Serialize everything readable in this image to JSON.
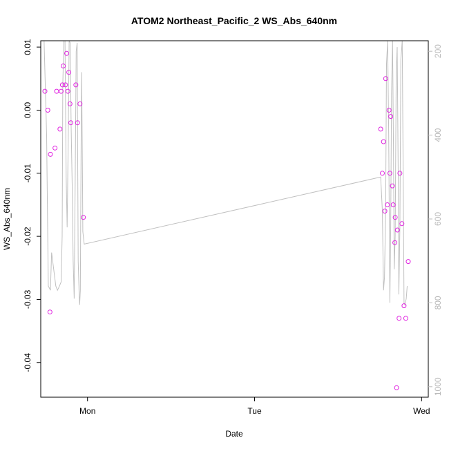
{
  "chart_data": {
    "type": "scatter",
    "title": "ATOM2 Northeast_Pacific_2 WS_Abs_640nm",
    "xlabel": "Date",
    "ylabel": "WS_Abs_640nm",
    "x_unit": "days",
    "xlim": [
      -0.28,
      2.04
    ],
    "ylim": [
      -0.0455,
      0.011
    ],
    "x_ticks": [
      {
        "value": 0,
        "label": "Mon"
      },
      {
        "value": 1,
        "label": "Tue"
      },
      {
        "value": 2,
        "label": "Wed"
      }
    ],
    "y_ticks": [
      {
        "value": 0.01,
        "label": "0.01"
      },
      {
        "value": 0.0,
        "label": "0.00"
      },
      {
        "value": -0.01,
        "label": "-0.01"
      },
      {
        "value": -0.02,
        "label": "-0.02"
      },
      {
        "value": -0.03,
        "label": "-0.03"
      },
      {
        "value": -0.04,
        "label": "-0.04"
      }
    ],
    "y2_ticks": [
      {
        "value": 200,
        "label": "200"
      },
      {
        "value": 400,
        "label": "400"
      },
      {
        "value": 600,
        "label": "600"
      },
      {
        "value": 800,
        "label": "800"
      },
      {
        "value": 1000,
        "label": "1000"
      }
    ],
    "y2lim": [
      1025,
      175
    ],
    "colors": {
      "points": "#e020e0",
      "line": "#c0c0c0",
      "axis": "#000000",
      "right_axis": "#b8b8b8"
    },
    "series": [
      {
        "type": "scatter",
        "points": [
          [
            -0.255,
            0.003
          ],
          [
            -0.238,
            0.0
          ],
          [
            -0.225,
            -0.032
          ],
          [
            -0.222,
            -0.007
          ],
          [
            -0.195,
            -0.006
          ],
          [
            -0.185,
            0.003
          ],
          [
            -0.165,
            -0.003
          ],
          [
            -0.158,
            0.003
          ],
          [
            -0.15,
            0.004
          ],
          [
            -0.145,
            0.007
          ],
          [
            -0.132,
            0.004
          ],
          [
            -0.125,
            0.009
          ],
          [
            -0.118,
            0.003
          ],
          [
            -0.112,
            0.006
          ],
          [
            -0.105,
            0.001
          ],
          [
            -0.1,
            -0.002
          ],
          [
            -0.07,
            0.004
          ],
          [
            -0.06,
            -0.002
          ],
          [
            -0.045,
            0.001
          ],
          [
            -0.025,
            -0.017
          ],
          [
            1.755,
            -0.003
          ],
          [
            1.765,
            -0.01
          ],
          [
            1.772,
            -0.005
          ],
          [
            1.78,
            -0.016
          ],
          [
            1.785,
            0.005
          ],
          [
            1.795,
            -0.015
          ],
          [
            1.805,
            0.0
          ],
          [
            1.81,
            -0.01
          ],
          [
            1.815,
            -0.001
          ],
          [
            1.825,
            -0.012
          ],
          [
            1.83,
            -0.015
          ],
          [
            1.84,
            -0.021
          ],
          [
            1.842,
            -0.017
          ],
          [
            1.85,
            -0.044
          ],
          [
            1.855,
            -0.019
          ],
          [
            1.865,
            -0.033
          ],
          [
            1.87,
            -0.01
          ],
          [
            1.882,
            -0.018
          ],
          [
            1.895,
            -0.031
          ],
          [
            1.905,
            -0.033
          ],
          [
            1.92,
            -0.024
          ]
        ]
      },
      {
        "type": "line",
        "axis": "right",
        "points": [
          [
            -0.26,
            120
          ],
          [
            -0.245,
            400
          ],
          [
            -0.235,
            760
          ],
          [
            -0.228,
            765
          ],
          [
            -0.222,
            770
          ],
          [
            -0.215,
            680
          ],
          [
            -0.19,
            760
          ],
          [
            -0.18,
            770
          ],
          [
            -0.168,
            760
          ],
          [
            -0.158,
            750
          ],
          [
            -0.152,
            640
          ],
          [
            -0.148,
            280
          ],
          [
            -0.142,
            130
          ],
          [
            -0.135,
            160
          ],
          [
            -0.128,
            500
          ],
          [
            -0.122,
            620
          ],
          [
            -0.116,
            420
          ],
          [
            -0.11,
            160
          ],
          [
            -0.104,
            180
          ],
          [
            -0.098,
            380
          ],
          [
            -0.092,
            520
          ],
          [
            -0.086,
            700
          ],
          [
            -0.08,
            790
          ],
          [
            -0.074,
            520
          ],
          [
            -0.068,
            200
          ],
          [
            -0.062,
            180
          ],
          [
            -0.056,
            700
          ],
          [
            -0.05,
            780
          ],
          [
            -0.047,
            805
          ],
          [
            -0.043,
            770
          ],
          [
            -0.038,
            400
          ],
          [
            -0.035,
            250
          ],
          [
            -0.03,
            520
          ],
          [
            -0.028,
            630
          ],
          [
            -0.02,
            660
          ],
          [
            1.755,
            500
          ],
          [
            1.765,
            580
          ],
          [
            1.772,
            770
          ],
          [
            1.778,
            740
          ],
          [
            1.785,
            580
          ],
          [
            1.79,
            230
          ],
          [
            1.797,
            150
          ],
          [
            1.803,
            400
          ],
          [
            1.81,
            800
          ],
          [
            1.815,
            620
          ],
          [
            1.82,
            300
          ],
          [
            1.826,
            170
          ],
          [
            1.832,
            450
          ],
          [
            1.836,
            720
          ],
          [
            1.842,
            640
          ],
          [
            1.848,
            250
          ],
          [
            1.854,
            190
          ],
          [
            1.86,
            500
          ],
          [
            1.864,
            780
          ],
          [
            1.87,
            620
          ],
          [
            1.876,
            220
          ],
          [
            1.884,
            160
          ],
          [
            1.89,
            500
          ],
          [
            1.895,
            800
          ],
          [
            1.9,
            805
          ],
          [
            1.908,
            790
          ],
          [
            1.914,
            760
          ]
        ]
      }
    ]
  }
}
